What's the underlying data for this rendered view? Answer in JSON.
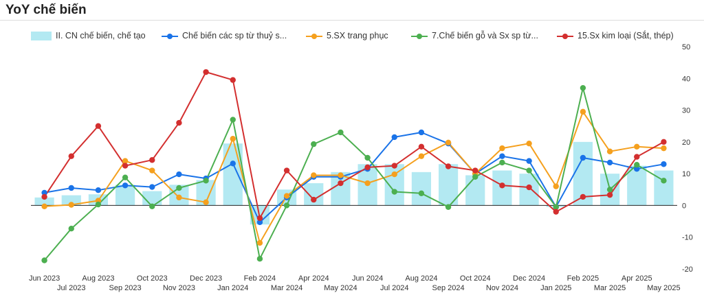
{
  "title": "YoY chế biến",
  "chart_data": {
    "type": "bar+line",
    "categories": [
      "Jun 2023",
      "Jul 2023",
      "Aug 2023",
      "Sep 2023",
      "Oct 2023",
      "Nov 2023",
      "Dec 2023",
      "Jan 2024",
      "Feb 2024",
      "Mar 2024",
      "Apr 2024",
      "May 2024",
      "Jun 2024",
      "Jul 2024",
      "Aug 2024",
      "Sep 2024",
      "Oct 2024",
      "Nov 2024",
      "Dec 2024",
      "Jan 2025",
      "Feb 2025",
      "Mar 2025",
      "Apr 2025",
      "May 2025"
    ],
    "ylim": [
      -20,
      50
    ],
    "yticks": [
      -20,
      -10,
      0,
      10,
      20,
      30,
      40,
      50
    ],
    "legend_position": "top",
    "grid": false,
    "bar_series": {
      "name": "II. CN chế biến, chế tạo",
      "color": "#b3e9f2",
      "values": [
        2.5,
        3.2,
        3.5,
        6.5,
        4.5,
        6.5,
        8.0,
        19.5,
        -6.0,
        5.0,
        7.0,
        10.5,
        13.0,
        13.0,
        10.5,
        13.0,
        9.5,
        11.0,
        10.0,
        -0.5,
        20.0,
        10.0,
        12.5,
        11.0
      ]
    },
    "line_series": [
      {
        "name": "Chế biến các sp từ thuỷ s...",
        "color": "#1a73e8",
        "values": [
          4.0,
          5.5,
          4.8,
          6.3,
          5.8,
          9.8,
          8.5,
          13.2,
          -5.3,
          2.5,
          9.0,
          9.0,
          11.5,
          21.5,
          23.0,
          19.5,
          10.0,
          15.5,
          14.0,
          -0.5,
          15.0,
          13.5,
          11.5,
          13.0
        ]
      },
      {
        "name": "5.SX trang phục",
        "color": "#f5a01e",
        "values": [
          -0.3,
          0.2,
          1.5,
          14.0,
          11.0,
          2.5,
          1.0,
          21.0,
          -11.8,
          3.0,
          9.5,
          9.5,
          7.0,
          9.8,
          15.5,
          19.8,
          10.0,
          18.0,
          19.5,
          6.0,
          29.5,
          17.0,
          18.5,
          18.0
        ]
      },
      {
        "name": "7.Chế biến gỗ và Sx sp từ...",
        "color": "#4caf50",
        "values": [
          -17.3,
          -7.3,
          0.3,
          8.8,
          -0.3,
          5.5,
          7.8,
          27.0,
          -16.8,
          0.0,
          19.3,
          23.0,
          15.0,
          4.3,
          3.8,
          -0.5,
          9.0,
          13.5,
          11.0,
          -0.5,
          37.0,
          5.0,
          12.8,
          7.8
        ]
      },
      {
        "name": "15.Sx kim loại (Sắt, thép)",
        "color": "#d32f2f",
        "values": [
          2.7,
          15.5,
          25.0,
          12.5,
          14.3,
          26.0,
          42.0,
          39.5,
          -4.0,
          11.0,
          1.8,
          7.0,
          12.0,
          12.5,
          18.5,
          12.3,
          11.0,
          6.3,
          5.7,
          -2.0,
          2.7,
          3.3,
          15.3,
          20.0
        ]
      }
    ]
  }
}
